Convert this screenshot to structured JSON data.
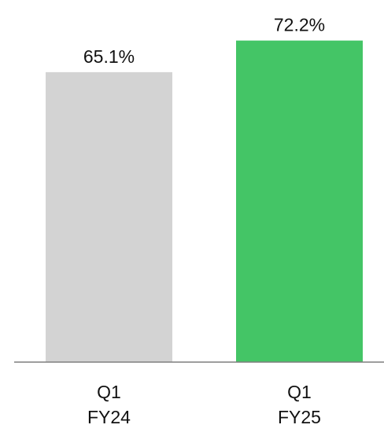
{
  "chart_data": {
    "type": "bar",
    "categories": [
      [
        "Q1",
        "FY24"
      ],
      [
        "Q1",
        "FY25"
      ]
    ],
    "values": [
      65.1,
      72.2
    ],
    "value_labels": [
      "65.1%",
      "72.2%"
    ],
    "bar_colors": [
      "#d3d3d3",
      "#44c566"
    ],
    "axis_color": "#7f7f7f",
    "ylim": [
      0,
      80
    ],
    "grid": false,
    "legend": "none"
  }
}
